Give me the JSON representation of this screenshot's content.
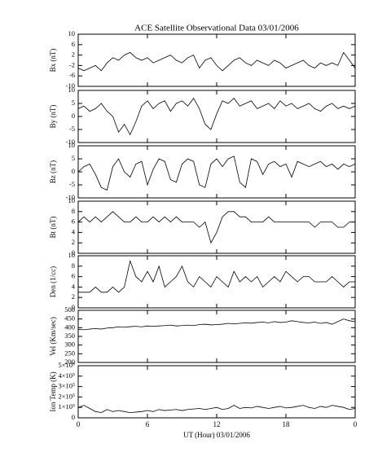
{
  "chart_data": [
    {
      "type": "line",
      "title": "ACE Satellite Observational Data   03/01/2006",
      "y_label": "Bx (nT)",
      "color": "#000000",
      "x": [
        0,
        0.5,
        1,
        1.5,
        2,
        2.5,
        3,
        3.5,
        4,
        4.5,
        5,
        5.5,
        6,
        6.5,
        7,
        7.5,
        8,
        8.5,
        9,
        9.5,
        10,
        10.5,
        11,
        11.5,
        12,
        12.5,
        13,
        13.5,
        14,
        14.5,
        15,
        15.5,
        16,
        16.5,
        17,
        17.5,
        18,
        18.5,
        19,
        19.5,
        20,
        20.5,
        21,
        21.5,
        22,
        22.5,
        23,
        23.5,
        24
      ],
      "values": [
        -3,
        -4,
        -3,
        -2,
        -4,
        -1,
        1,
        0,
        2,
        3,
        1,
        0,
        1,
        -1,
        0,
        1,
        2,
        0,
        -1,
        1,
        2,
        -3,
        0,
        1,
        -2,
        -4,
        -2,
        0,
        1,
        -1,
        -2,
        0,
        -1,
        -2,
        0,
        -1,
        -3,
        -2,
        -1,
        0,
        -2,
        -3,
        -1,
        -2,
        -1,
        -2,
        3,
        0,
        -3
      ],
      "ylim": [
        -10,
        10
      ],
      "yticks": [
        -10,
        -6,
        -2,
        2,
        6,
        10
      ]
    },
    {
      "type": "line",
      "y_label": "By (nT)",
      "color": "#000000",
      "x": [
        0,
        0.5,
        1,
        1.5,
        2,
        2.5,
        3,
        3.5,
        4,
        4.5,
        5,
        5.5,
        6,
        6.5,
        7,
        7.5,
        8,
        8.5,
        9,
        9.5,
        10,
        10.5,
        11,
        11.5,
        12,
        12.5,
        13,
        13.5,
        14,
        14.5,
        15,
        15.5,
        16,
        16.5,
        17,
        17.5,
        18,
        18.5,
        19,
        19.5,
        20,
        20.5,
        21,
        21.5,
        22,
        22.5,
        23,
        23.5,
        24
      ],
      "values": [
        3,
        4,
        2,
        3,
        5,
        2,
        0,
        -6,
        -3,
        -7,
        -2,
        4,
        6,
        3,
        5,
        6,
        2,
        5,
        6,
        4,
        7,
        3,
        -3,
        -5,
        1,
        6,
        5,
        7,
        4,
        5,
        6,
        3,
        4,
        5,
        3,
        6,
        4,
        5,
        3,
        4,
        5,
        3,
        2,
        4,
        5,
        3,
        4,
        3,
        4
      ],
      "ylim": [
        -10,
        10
      ],
      "yticks": [
        -10,
        -5,
        0,
        5,
        10
      ]
    },
    {
      "type": "line",
      "y_label": "Bz (nT)",
      "color": "#000000",
      "x": [
        0,
        0.5,
        1,
        1.5,
        2,
        2.5,
        3,
        3.5,
        4,
        4.5,
        5,
        5.5,
        6,
        6.5,
        7,
        7.5,
        8,
        8.5,
        9,
        9.5,
        10,
        10.5,
        11,
        11.5,
        12,
        12.5,
        13,
        13.5,
        14,
        14.5,
        15,
        15.5,
        16,
        16.5,
        17,
        17.5,
        18,
        18.5,
        19,
        19.5,
        20,
        20.5,
        21,
        21.5,
        22,
        22.5,
        23,
        23.5,
        24
      ],
      "values": [
        0,
        2,
        3,
        -1,
        -6,
        -7,
        2,
        5,
        0,
        -2,
        3,
        4,
        -5,
        1,
        5,
        4,
        -3,
        -4,
        3,
        5,
        4,
        -5,
        -6,
        3,
        5,
        2,
        5,
        6,
        -4,
        -6,
        5,
        4,
        -1,
        3,
        4,
        2,
        3,
        -2,
        4,
        3,
        2,
        3,
        4,
        2,
        3,
        1,
        3,
        2,
        3
      ],
      "ylim": [
        -10,
        10
      ],
      "yticks": [
        -10,
        -5,
        0,
        5,
        10
      ]
    },
    {
      "type": "line",
      "y_label": "Bt (nT)",
      "color": "#000000",
      "x": [
        0,
        0.5,
        1,
        1.5,
        2,
        2.5,
        3,
        3.5,
        4,
        4.5,
        5,
        5.5,
        6,
        6.5,
        7,
        7.5,
        8,
        8.5,
        9,
        9.5,
        10,
        10.5,
        11,
        11.5,
        12,
        12.5,
        13,
        13.5,
        14,
        14.5,
        15,
        15.5,
        16,
        16.5,
        17,
        17.5,
        18,
        18.5,
        19,
        19.5,
        20,
        20.5,
        21,
        21.5,
        22,
        22.5,
        23,
        23.5,
        24
      ],
      "values": [
        6,
        7,
        6,
        7,
        6,
        7,
        8,
        7,
        6,
        6,
        7,
        6,
        6,
        7,
        6,
        7,
        6,
        7,
        6,
        6,
        6,
        5,
        6,
        2,
        4,
        7,
        8,
        8,
        7,
        7,
        6,
        6,
        6,
        7,
        6,
        6,
        6,
        6,
        6,
        6,
        6,
        5,
        6,
        6,
        6,
        5,
        5,
        6,
        6
      ],
      "ylim": [
        0,
        10
      ],
      "yticks": [
        0,
        2,
        4,
        6,
        8,
        10
      ]
    },
    {
      "type": "line",
      "y_label": "Den (1/cc)",
      "color": "#000000",
      "x": [
        0,
        0.5,
        1,
        1.5,
        2,
        2.5,
        3,
        3.5,
        4,
        4.5,
        5,
        5.5,
        6,
        6.5,
        7,
        7.5,
        8,
        8.5,
        9,
        9.5,
        10,
        10.5,
        11,
        11.5,
        12,
        12.5,
        13,
        13.5,
        14,
        14.5,
        15,
        15.5,
        16,
        16.5,
        17,
        17.5,
        18,
        18.5,
        19,
        19.5,
        20,
        20.5,
        21,
        21.5,
        22,
        22.5,
        23,
        23.5,
        24
      ],
      "values": [
        3,
        3,
        3,
        4,
        3,
        3,
        4,
        3,
        4,
        9,
        6,
        5,
        7,
        5,
        8,
        4,
        5,
        6,
        8,
        5,
        4,
        6,
        5,
        4,
        6,
        5,
        4,
        7,
        5,
        6,
        5,
        6,
        4,
        5,
        6,
        5,
        7,
        6,
        5,
        6,
        6,
        5,
        5,
        5,
        6,
        5,
        4,
        5,
        5
      ],
      "ylim": [
        0,
        10
      ],
      "yticks": [
        0,
        2,
        4,
        6,
        8,
        10
      ]
    },
    {
      "type": "line",
      "y_label": "Vel (Km/sec)",
      "color": "#000000",
      "x": [
        0,
        0.5,
        1,
        1.5,
        2,
        2.5,
        3,
        3.5,
        4,
        4.5,
        5,
        5.5,
        6,
        6.5,
        7,
        7.5,
        8,
        8.5,
        9,
        9.5,
        10,
        10.5,
        11,
        11.5,
        12,
        12.5,
        13,
        13.5,
        14,
        14.5,
        15,
        15.5,
        16,
        16.5,
        17,
        17.5,
        18,
        18.5,
        19,
        19.5,
        20,
        20.5,
        21,
        21.5,
        22,
        22.5,
        23,
        23.5,
        24
      ],
      "values": [
        390,
        388,
        392,
        395,
        392,
        398,
        400,
        405,
        402,
        406,
        408,
        405,
        410,
        408,
        410,
        412,
        415,
        410,
        412,
        415,
        412,
        418,
        420,
        416,
        418,
        420,
        425,
        422,
        425,
        428,
        426,
        430,
        432,
        428,
        435,
        430,
        432,
        440,
        435,
        430,
        428,
        432,
        425,
        430,
        420,
        435,
        450,
        440,
        435
      ],
      "ylim": [
        200,
        500
      ],
      "yticks": [
        200,
        250,
        300,
        350,
        400,
        450,
        500
      ]
    },
    {
      "type": "line",
      "y_label": "Ion Temp (K)",
      "x_label": "UT (Hour)  03/01/2006",
      "color": "#000000",
      "x": [
        0,
        0.5,
        1,
        1.5,
        2,
        2.5,
        3,
        3.5,
        4,
        4.5,
        5,
        5.5,
        6,
        6.5,
        7,
        7.5,
        8,
        8.5,
        9,
        9.5,
        10,
        10.5,
        11,
        11.5,
        12,
        12.5,
        13,
        13.5,
        14,
        14.5,
        15,
        15.5,
        16,
        16.5,
        17,
        17.5,
        18,
        18.5,
        19,
        19.5,
        20,
        20.5,
        21,
        21.5,
        22,
        22.5,
        23,
        23.5,
        24
      ],
      "values": [
        100000,
        120000,
        90000,
        60000,
        50000,
        80000,
        60000,
        70000,
        60000,
        50000,
        55000,
        60000,
        70000,
        60000,
        80000,
        70000,
        75000,
        80000,
        70000,
        80000,
        85000,
        90000,
        80000,
        90000,
        100000,
        80000,
        90000,
        120000,
        90000,
        100000,
        95000,
        110000,
        100000,
        90000,
        100000,
        110000,
        95000,
        100000,
        110000,
        120000,
        100000,
        90000,
        110000,
        100000,
        120000,
        110000,
        100000,
        80000,
        90000
      ],
      "ylim": [
        0,
        500000
      ],
      "yticks": [
        0,
        {
          "value": 100000,
          "label": "1×10⁵"
        },
        {
          "value": 200000,
          "label": "2×10⁵"
        },
        {
          "value": 300000,
          "label": "3×10⁵"
        },
        {
          "value": 400000,
          "label": "4×10⁵"
        },
        {
          "value": 500000,
          "label": "5×10⁵"
        }
      ],
      "xlim": [
        0,
        24
      ],
      "xticks": [
        0,
        6,
        12,
        18,
        {
          "value": 24,
          "label": "0"
        }
      ]
    }
  ]
}
